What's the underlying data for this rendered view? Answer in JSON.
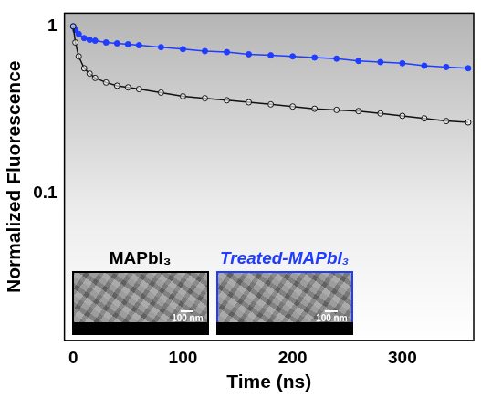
{
  "chart_data": {
    "type": "line",
    "x_label": "Time (ns)",
    "y_label": "Normalized Fluorescence",
    "x": [
      0,
      2,
      5,
      10,
      15,
      20,
      30,
      40,
      50,
      60,
      80,
      100,
      120,
      140,
      160,
      180,
      200,
      220,
      240,
      260,
      280,
      300,
      320,
      340,
      360
    ],
    "series": [
      {
        "name": "MAPbI₃",
        "color": "#111111",
        "marker": "circle",
        "line_style": "solid",
        "values": [
          1.0,
          0.8,
          0.66,
          0.56,
          0.52,
          0.49,
          0.46,
          0.44,
          0.43,
          0.42,
          0.4,
          0.38,
          0.37,
          0.36,
          0.35,
          0.34,
          0.33,
          0.32,
          0.315,
          0.31,
          0.3,
          0.29,
          0.28,
          0.27,
          0.265
        ]
      },
      {
        "name": "Treated-MAPbI₃",
        "color": "#1f3cff",
        "marker": "circle",
        "line_style": "solid",
        "values": [
          1.0,
          0.95,
          0.9,
          0.85,
          0.83,
          0.82,
          0.8,
          0.79,
          0.78,
          0.77,
          0.75,
          0.73,
          0.71,
          0.7,
          0.68,
          0.67,
          0.66,
          0.65,
          0.64,
          0.62,
          0.61,
          0.6,
          0.58,
          0.57,
          0.56
        ]
      }
    ],
    "xlim": [
      -8,
      365
    ],
    "ylim": [
      0.013,
      1.2
    ],
    "xticks": [
      0,
      100,
      200,
      300
    ],
    "yticks": [
      0.1,
      1
    ],
    "log": "y",
    "grid": false,
    "annotations": [
      {
        "text": "MAPbI₃",
        "color": "#000000",
        "scale_bar": "100 nm"
      },
      {
        "text": "Treated-MAPbI₃",
        "color": "#1f3cff",
        "scale_bar": "100 nm"
      }
    ]
  }
}
